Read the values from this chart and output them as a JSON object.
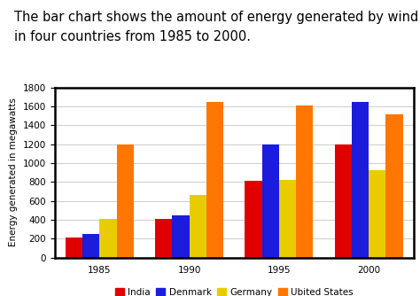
{
  "title": "The bar chart shows the amount of energy generated by wind\nin four countries from 1985 to 2000.",
  "years": [
    "1985",
    "1990",
    "1995",
    "2000"
  ],
  "countries": [
    "India",
    "Denmark",
    "Germany",
    "Ubited States"
  ],
  "colors": [
    "#e00000",
    "#1c1cdd",
    "#e8cc00",
    "#ff7700"
  ],
  "values": {
    "India": [
      210,
      410,
      810,
      1200
    ],
    "Denmark": [
      245,
      450,
      1200,
      1650
    ],
    "Germany": [
      410,
      660,
      820,
      920
    ],
    "Ubited States": [
      1200,
      1650,
      1610,
      1510
    ]
  },
  "ylabel": "Energy generated in megawatts",
  "ylim": [
    0,
    1800
  ],
  "yticks": [
    0,
    200,
    400,
    600,
    800,
    1000,
    1200,
    1400,
    1600,
    1800
  ],
  "bar_width": 0.19,
  "title_fontsize": 10.5,
  "legend_fontsize": 7.5,
  "tick_fontsize": 7.5,
  "ylabel_fontsize": 7.5
}
